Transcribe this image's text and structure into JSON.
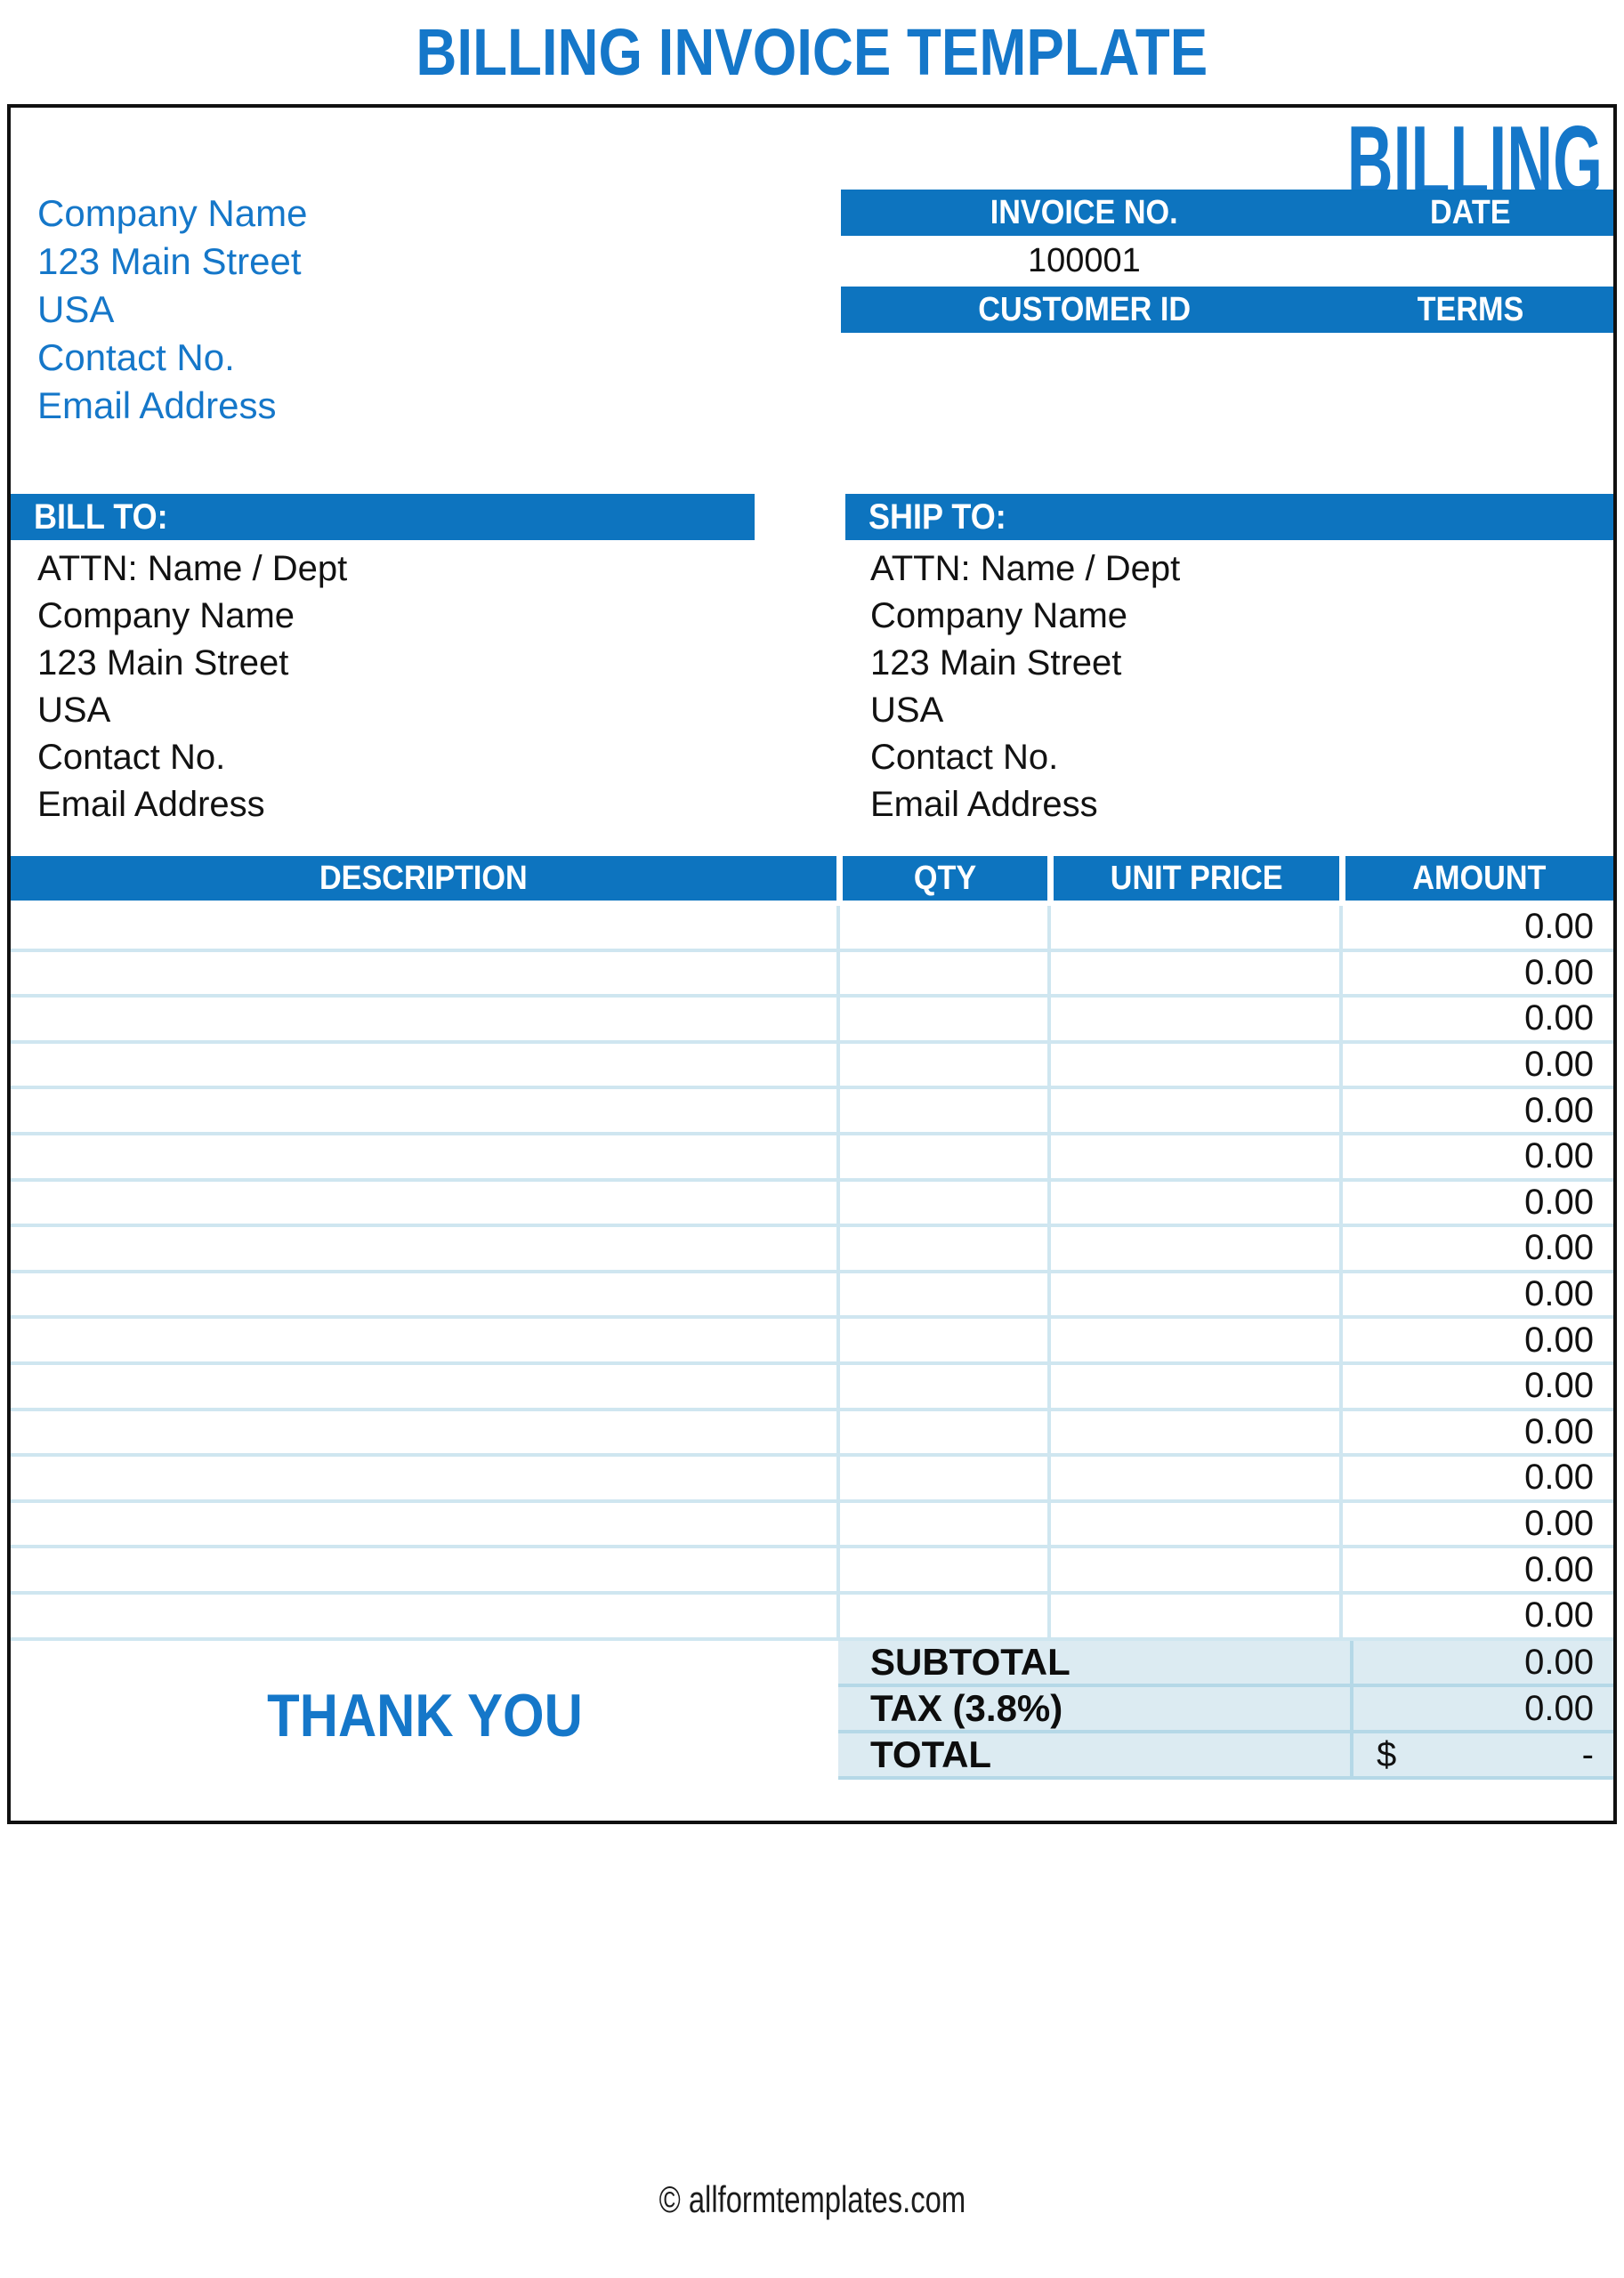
{
  "page": {
    "title": "BILLING INVOICE TEMPLATE",
    "footer_credit": "© allformtemplates.com"
  },
  "header": {
    "brand": "BILLING",
    "company_info": [
      "Company Name",
      "123 Main Street",
      "USA",
      "Contact No.",
      "Email Address"
    ],
    "invoice_no_label": "INVOICE NO.",
    "invoice_no_value": "100001",
    "date_label": "DATE",
    "date_value": "",
    "customer_id_label": "CUSTOMER ID",
    "customer_id_value": "",
    "terms_label": "TERMS",
    "terms_value": ""
  },
  "bill_to": {
    "label": "BILL TO:",
    "lines": [
      "ATTN: Name / Dept",
      "Company Name",
      "123 Main Street",
      "USA",
      "Contact No.",
      "Email Address"
    ]
  },
  "ship_to": {
    "label": "SHIP TO:",
    "lines": [
      "ATTN: Name / Dept",
      "Company Name",
      "123 Main Street",
      "USA",
      "Contact No.",
      "Email Address"
    ]
  },
  "table": {
    "headers": [
      "DESCRIPTION",
      "QTY",
      "UNIT PRICE",
      "AMOUNT"
    ],
    "rows": [
      {
        "description": "",
        "qty": "",
        "unit_price": "",
        "amount": "0.00"
      },
      {
        "description": "",
        "qty": "",
        "unit_price": "",
        "amount": "0.00"
      },
      {
        "description": "",
        "qty": "",
        "unit_price": "",
        "amount": "0.00"
      },
      {
        "description": "",
        "qty": "",
        "unit_price": "",
        "amount": "0.00"
      },
      {
        "description": "",
        "qty": "",
        "unit_price": "",
        "amount": "0.00"
      },
      {
        "description": "",
        "qty": "",
        "unit_price": "",
        "amount": "0.00"
      },
      {
        "description": "",
        "qty": "",
        "unit_price": "",
        "amount": "0.00"
      },
      {
        "description": "",
        "qty": "",
        "unit_price": "",
        "amount": "0.00"
      },
      {
        "description": "",
        "qty": "",
        "unit_price": "",
        "amount": "0.00"
      },
      {
        "description": "",
        "qty": "",
        "unit_price": "",
        "amount": "0.00"
      },
      {
        "description": "",
        "qty": "",
        "unit_price": "",
        "amount": "0.00"
      },
      {
        "description": "",
        "qty": "",
        "unit_price": "",
        "amount": "0.00"
      },
      {
        "description": "",
        "qty": "",
        "unit_price": "",
        "amount": "0.00"
      },
      {
        "description": "",
        "qty": "",
        "unit_price": "",
        "amount": "0.00"
      },
      {
        "description": "",
        "qty": "",
        "unit_price": "",
        "amount": "0.00"
      },
      {
        "description": "",
        "qty": "",
        "unit_price": "",
        "amount": "0.00"
      }
    ],
    "totals": [
      {
        "label": "SUBTOTAL",
        "currency": "",
        "amount": "0.00"
      },
      {
        "label": "TAX (3.8%)",
        "currency": "",
        "amount": "0.00"
      },
      {
        "label": "TOTAL",
        "currency": "$",
        "amount": "-"
      }
    ]
  },
  "thank_you": "THANK YOU",
  "colors": {
    "bar_blue": "#0d74bf",
    "text_blue": "#1577c9",
    "light_bg": "#dcebf2",
    "row_line": "#cfe6f0",
    "totals_line": "#b5d8e7",
    "border": "#101010"
  }
}
